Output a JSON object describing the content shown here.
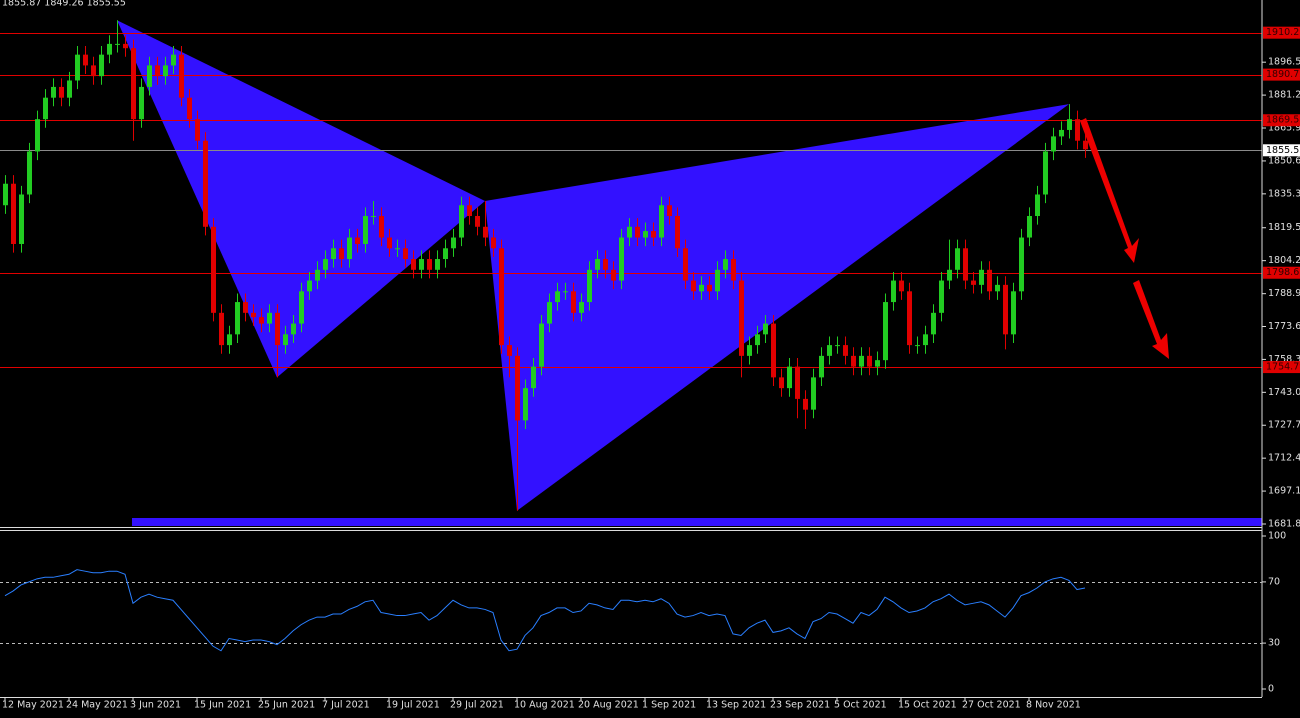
{
  "chart_data": {
    "type": "candlestick",
    "header": "1855.87 1849.26 1855.55",
    "colors": {
      "up": "#22cc22",
      "down": "#e00000",
      "pattern": "#3311ff",
      "level": "#e00000",
      "current": "#8a8a8a"
    },
    "open": [
      1830,
      1840,
      1812,
      1835,
      1855,
      1870,
      1880,
      1885,
      1880,
      1888,
      1900,
      1895,
      1890,
      1900,
      1905,
      1905,
      1903,
      1870,
      1885,
      1895,
      1890,
      1895,
      1900,
      1880,
      1870,
      1860,
      1820,
      1780,
      1765,
      1770,
      1785,
      1780,
      1778,
      1775,
      1780,
      1765,
      1770,
      1775,
      1790,
      1795,
      1800,
      1805,
      1810,
      1805,
      1815,
      1812,
      1825,
      1825,
      1815,
      1810,
      1810,
      1805,
      1800,
      1805,
      1800,
      1805,
      1810,
      1815,
      1830,
      1825,
      1820,
      1815,
      1810,
      1765,
      1760,
      1730,
      1745,
      1755,
      1775,
      1785,
      1790,
      1790,
      1780,
      1785,
      1800,
      1805,
      1800,
      1795,
      1815,
      1820,
      1815,
      1818,
      1815,
      1830,
      1825,
      1810,
      1795,
      1790,
      1793,
      1790,
      1800,
      1805,
      1795,
      1760,
      1765,
      1770,
      1775,
      1750,
      1745,
      1755,
      1740,
      1735,
      1750,
      1760,
      1765,
      1765,
      1760,
      1755,
      1760,
      1755,
      1758,
      1785,
      1795,
      1790,
      1765,
      1765,
      1770,
      1780,
      1795,
      1800,
      1810,
      1795,
      1793,
      1800,
      1790,
      1793,
      1770,
      1790,
      1815,
      1825,
      1835,
      1855,
      1862,
      1865,
      1870,
      1860
    ],
    "high": [
      1844,
      1844,
      1839,
      1859,
      1874,
      1884,
      1889,
      1889,
      1892,
      1904,
      1904,
      1899,
      1904,
      1909,
      1916,
      1909,
      1907,
      1889,
      1899,
      1899,
      1899,
      1904,
      1904,
      1884,
      1874,
      1864,
      1824,
      1784,
      1774,
      1789,
      1789,
      1784,
      1782,
      1784,
      1784,
      1774,
      1779,
      1794,
      1799,
      1804,
      1809,
      1814,
      1814,
      1819,
      1819,
      1829,
      1832,
      1829,
      1819,
      1814,
      1814,
      1809,
      1809,
      1809,
      1809,
      1814,
      1819,
      1834,
      1834,
      1829,
      1832,
      1819,
      1814,
      1769,
      1764,
      1749,
      1759,
      1779,
      1789,
      1794,
      1794,
      1794,
      1789,
      1804,
      1809,
      1809,
      1804,
      1819,
      1824,
      1824,
      1822,
      1822,
      1834,
      1834,
      1829,
      1814,
      1799,
      1797,
      1797,
      1804,
      1809,
      1809,
      1799,
      1769,
      1774,
      1779,
      1779,
      1754,
      1759,
      1759,
      1744,
      1754,
      1764,
      1769,
      1769,
      1769,
      1764,
      1764,
      1764,
      1762,
      1789,
      1799,
      1799,
      1794,
      1769,
      1774,
      1784,
      1799,
      1814,
      1814,
      1814,
      1799,
      1804,
      1804,
      1797,
      1797,
      1794,
      1819,
      1829,
      1839,
      1859,
      1866,
      1869,
      1877,
      1874,
      1864
    ],
    "low": [
      1826,
      1808,
      1808,
      1831,
      1851,
      1866,
      1876,
      1876,
      1876,
      1884,
      1891,
      1886,
      1886,
      1896,
      1901,
      1899,
      1860,
      1866,
      1881,
      1886,
      1886,
      1891,
      1876,
      1866,
      1856,
      1816,
      1776,
      1761,
      1761,
      1766,
      1776,
      1774,
      1771,
      1771,
      1750,
      1761,
      1766,
      1771,
      1786,
      1791,
      1796,
      1801,
      1801,
      1801,
      1808,
      1808,
      1821,
      1811,
      1806,
      1806,
      1801,
      1796,
      1796,
      1796,
      1796,
      1801,
      1806,
      1811,
      1821,
      1816,
      1811,
      1806,
      1761,
      1750,
      1688,
      1726,
      1741,
      1751,
      1771,
      1781,
      1786,
      1776,
      1776,
      1781,
      1796,
      1796,
      1791,
      1791,
      1811,
      1811,
      1811,
      1811,
      1811,
      1821,
      1806,
      1791,
      1786,
      1786,
      1786,
      1786,
      1796,
      1791,
      1750,
      1756,
      1761,
      1766,
      1746,
      1741,
      1741,
      1731,
      1726,
      1731,
      1746,
      1756,
      1761,
      1756,
      1751,
      1751,
      1751,
      1751,
      1754,
      1781,
      1786,
      1761,
      1761,
      1761,
      1766,
      1776,
      1791,
      1796,
      1791,
      1789,
      1789,
      1786,
      1786,
      1763,
      1766,
      1786,
      1811,
      1821,
      1831,
      1851,
      1858,
      1861,
      1856,
      1852
    ],
    "close": [
      1840,
      1812,
      1835,
      1855,
      1870,
      1880,
      1885,
      1880,
      1888,
      1900,
      1895,
      1890,
      1900,
      1905,
      1905,
      1903,
      1870,
      1885,
      1895,
      1890,
      1895,
      1900,
      1880,
      1870,
      1860,
      1820,
      1780,
      1765,
      1770,
      1785,
      1780,
      1778,
      1775,
      1780,
      1765,
      1770,
      1775,
      1790,
      1795,
      1800,
      1805,
      1810,
      1805,
      1815,
      1812,
      1825,
      1825,
      1815,
      1810,
      1810,
      1805,
      1800,
      1805,
      1800,
      1805,
      1810,
      1815,
      1830,
      1825,
      1820,
      1815,
      1810,
      1765,
      1760,
      1730,
      1745,
      1755,
      1775,
      1785,
      1790,
      1790,
      1780,
      1785,
      1800,
      1805,
      1800,
      1795,
      1815,
      1820,
      1815,
      1818,
      1815,
      1830,
      1825,
      1810,
      1795,
      1790,
      1793,
      1790,
      1800,
      1805,
      1795,
      1760,
      1765,
      1770,
      1775,
      1750,
      1745,
      1755,
      1740,
      1735,
      1750,
      1760,
      1765,
      1765,
      1760,
      1755,
      1760,
      1755,
      1758,
      1785,
      1795,
      1790,
      1765,
      1765,
      1770,
      1780,
      1795,
      1800,
      1810,
      1795,
      1793,
      1800,
      1790,
      1793,
      1770,
      1790,
      1815,
      1825,
      1835,
      1855,
      1862,
      1865,
      1870,
      1860,
      1856
    ],
    "xticks": [
      {
        "value": 0,
        "label": "12 May 2021"
      },
      {
        "value": 8,
        "label": "24 May 2021"
      },
      {
        "value": 16,
        "label": "3 Jun 2021"
      },
      {
        "value": 24,
        "label": "15 Jun 2021"
      },
      {
        "value": 32,
        "label": "25 Jun 2021"
      },
      {
        "value": 40,
        "label": "7 Jul 2021"
      },
      {
        "value": 48,
        "label": "19 Jul 2021"
      },
      {
        "value": 56,
        "label": "29 Jul 2021"
      },
      {
        "value": 64,
        "label": "10 Aug 2021"
      },
      {
        "value": 72,
        "label": "20 Aug 2021"
      },
      {
        "value": 80,
        "label": "1 Sep 2021"
      },
      {
        "value": 88,
        "label": "13 Sep 2021"
      },
      {
        "value": 96,
        "label": "23 Sep 2021"
      },
      {
        "value": 104,
        "label": "5 Oct 2021"
      },
      {
        "value": 112,
        "label": "15 Oct 2021"
      },
      {
        "value": 120,
        "label": "27 Oct 2021"
      },
      {
        "value": 128,
        "label": "8 Nov 2021"
      }
    ],
    "ylim": [
      1681.85,
      1925.4
    ],
    "yticks": [
      {
        "value": 1896.5,
        "label": "1896.50"
      },
      {
        "value": 1881.2,
        "label": "1881.20"
      },
      {
        "value": 1865.9,
        "label": "1865.90"
      },
      {
        "value": 1850.6,
        "label": "1850.60"
      },
      {
        "value": 1835.3,
        "label": "1835.30"
      },
      1819.55,
      1804.25,
      {
        "value": 1788.9,
        "label": "1788.90"
      },
      1773.65,
      1758.35,
      1743.05,
      1727.75,
      1712.45,
      1697.15,
      1681.85
    ],
    "levels": [
      1910.21,
      1890.72,
      1869.51,
      1798.63,
      1754.79
    ],
    "current": 1855.55,
    "patterns": [
      [
        {
          "x": 14,
          "y": 1916
        },
        {
          "x": 34,
          "y": 1750
        },
        {
          "x": 60,
          "y": 1832
        }
      ],
      [
        {
          "x": 60,
          "y": 1832
        },
        {
          "x": 64,
          "y": 1688
        },
        {
          "x": 133,
          "y": 1877
        }
      ]
    ],
    "rsi": {
      "color": "#2a7fff",
      "ylim": [
        0,
        100
      ],
      "yticks": [
        100,
        70,
        30,
        0
      ],
      "levels": [
        70,
        30
      ],
      "values": [
        61,
        64,
        68,
        70,
        72,
        73,
        73,
        74,
        75,
        78,
        77,
        76,
        76,
        77,
        77,
        75,
        56,
        60,
        62,
        60,
        59,
        58,
        52,
        46,
        40,
        34,
        28,
        25,
        33,
        32,
        31,
        32,
        32,
        31,
        29,
        33,
        38,
        42,
        45,
        47,
        47,
        49,
        49,
        52,
        54,
        57,
        58,
        50,
        49,
        48,
        48,
        49,
        50,
        45,
        48,
        53,
        58,
        55,
        53,
        53,
        52,
        50,
        32,
        25,
        26,
        35,
        40,
        48,
        50,
        53,
        53,
        50,
        51,
        56,
        55,
        53,
        52,
        58,
        58,
        57,
        58,
        57,
        59,
        56,
        49,
        47,
        48,
        50,
        48,
        49,
        48,
        36,
        35,
        40,
        43,
        45,
        37,
        38,
        40,
        36,
        33,
        44,
        46,
        50,
        49,
        46,
        43,
        50,
        48,
        52,
        60,
        57,
        53,
        50,
        51,
        53,
        57,
        59,
        62,
        58,
        55,
        56,
        57,
        55,
        51,
        47,
        53,
        61,
        63,
        66,
        70,
        72,
        73,
        71,
        65,
        66
      ]
    }
  }
}
